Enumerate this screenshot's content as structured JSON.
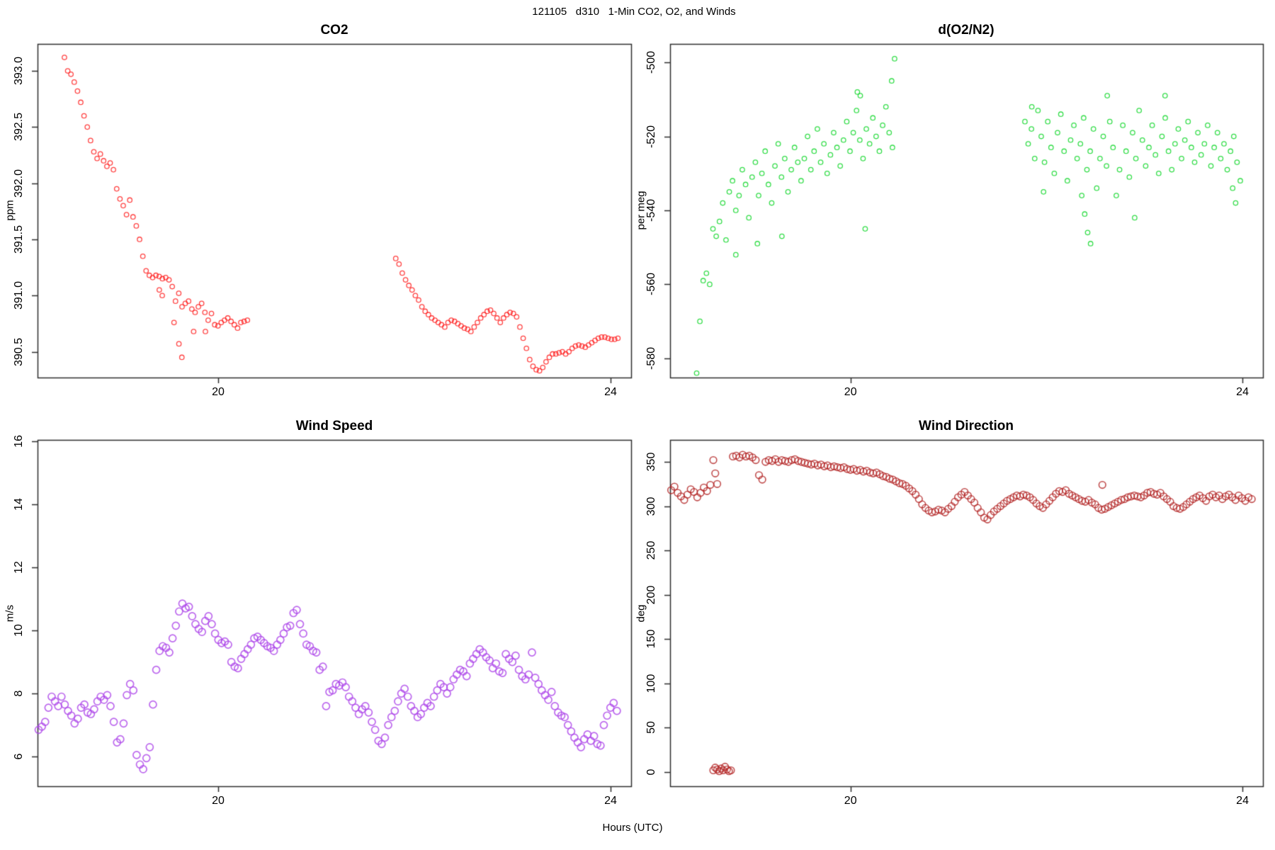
{
  "chart_data": {
    "title": "121105   d310   1-Min CO2, O2, and Winds",
    "xlabel": "Hours (UTC)",
    "type": "scatter",
    "x_axis_hours_range": [
      18.16,
      24.21
    ],
    "panels": [
      {
        "id": "co2",
        "title": "CO2",
        "ylabel": "ppm",
        "color": "#ff1313",
        "x_range": [
          18.159,
          24.209
        ],
        "y_range": [
          390.27,
          393.24
        ],
        "x_ticks": [
          20,
          24
        ],
        "x_tick_labels": [
          "20",
          "24"
        ],
        "y_ticks": {
          "values": [
            390.5,
            391.0,
            391.5,
            392.0,
            392.5,
            393.0
          ],
          "labels": [
            "390.5",
            "391.0",
            "391.5",
            "392.0",
            "392.5",
            "393.0"
          ]
        },
        "segments": [
          {
            "h0": 18.433,
            "dt": 0.0333,
            "values": [
              393.12,
              393.0,
              392.97,
              392.9,
              392.82,
              392.72,
              392.6,
              392.5,
              392.38,
              392.28,
              392.22,
              392.26,
              392.2,
              392.15,
              392.18,
              392.12,
              391.95,
              391.86,
              391.8,
              391.72,
              391.85,
              391.7,
              391.62,
              391.5,
              391.35,
              391.22,
              391.18,
              391.16,
              391.18,
              391.17,
              391.15,
              391.16,
              391.14,
              391.08,
              390.95,
              391.02,
              390.9,
              390.93,
              390.95,
              390.88,
              390.85,
              390.9,
              390.93,
              390.85,
              390.78,
              390.84,
              390.74,
              390.73,
              390.76,
              390.78,
              390.8,
              390.77,
              390.74,
              390.71,
              390.76,
              390.77,
              390.78
            ]
          },
          {
            "h0": 21.81,
            "dt": 0.0333,
            "values": [
              391.33,
              391.28,
              391.2,
              391.14,
              391.09,
              391.05,
              391.0,
              390.96,
              390.9,
              390.86,
              390.83,
              390.8,
              390.78,
              390.76,
              390.74,
              390.72,
              390.76,
              390.78,
              390.77,
              390.75,
              390.73,
              390.71,
              390.7,
              390.68,
              390.72,
              390.76,
              390.8,
              390.83,
              390.86,
              390.87,
              390.84,
              390.8,
              390.76,
              390.8,
              390.83,
              390.85,
              390.84,
              390.81,
              390.72,
              390.62,
              390.53,
              390.43,
              390.37,
              390.34,
              390.33,
              390.36,
              390.41,
              390.45,
              390.48,
              390.48,
              390.49,
              390.5,
              390.48,
              390.5,
              390.53,
              390.55,
              390.56,
              390.55,
              390.54,
              390.56,
              390.58,
              390.6,
              390.62,
              390.63,
              390.63,
              390.62,
              390.61,
              390.61,
              390.62
            ]
          }
        ],
        "points": [
          [
            19.4,
            391.05
          ],
          [
            19.43,
            391.0
          ],
          [
            19.55,
            390.76
          ],
          [
            19.6,
            390.57
          ],
          [
            19.63,
            390.45
          ],
          [
            19.75,
            390.68
          ],
          [
            19.87,
            390.68
          ]
        ]
      },
      {
        "id": "o2n2",
        "title": "d(O2/N2)",
        "ylabel": "per meg",
        "color": "#00d41d",
        "x_range": [
          18.159,
          24.209
        ],
        "y_range": [
          -585.2,
          -495.0
        ],
        "x_ticks": [
          20,
          24
        ],
        "x_tick_labels": [
          "20",
          "24"
        ],
        "y_ticks": {
          "values": [
            -580,
            -560,
            -540,
            -520,
            -500
          ],
          "labels": [
            "-580",
            "-560",
            "-540",
            "-520",
            "-500"
          ]
        },
        "segments": [
          {
            "h0": 18.43,
            "dt": 0.0333,
            "values": [
              -584,
              -570,
              -559,
              -557,
              -560,
              -545,
              -547,
              -543,
              -538,
              -548,
              -535,
              -532,
              -540,
              -536,
              -529,
              -533,
              -542,
              -531,
              -527,
              -536,
              -530,
              -524,
              -533,
              -538,
              -528,
              -522,
              -531,
              -526,
              -535,
              -529,
              -523,
              -527,
              -532,
              -526,
              -520,
              -529,
              -524,
              -518,
              -527,
              -522,
              -530,
              -525,
              -519,
              -523,
              -528,
              -521,
              -516,
              -524,
              -519,
              -513,
              -521,
              -526,
              -518,
              -522,
              -515,
              -520,
              -524,
              -517,
              -512,
              -519,
              -523
            ]
          },
          {
            "h0": 21.78,
            "dt": 0.0333,
            "values": [
              -516,
              -522,
              -518,
              -526,
              -513,
              -520,
              -527,
              -516,
              -523,
              -530,
              -519,
              -514,
              -524,
              -532,
              -521,
              -517,
              -526,
              -522,
              -515,
              -529,
              -524,
              -518,
              -534,
              -526,
              -520,
              -528,
              -516,
              -523,
              -536,
              -529,
              -517,
              -524,
              -531,
              -519,
              -526,
              -513,
              -521,
              -528,
              -523,
              -517,
              -525,
              -530,
              -520,
              -515,
              -524,
              -529,
              -522,
              -518,
              -526,
              -521,
              -516,
              -523,
              -527,
              -519,
              -525,
              -522,
              -517,
              -528,
              -523,
              -519,
              -526,
              -522,
              -529,
              -524,
              -520,
              -527,
              -532
            ]
          }
        ],
        "points": [
          [
            18.83,
            -552
          ],
          [
            19.05,
            -549
          ],
          [
            19.3,
            -547
          ],
          [
            20.07,
            -508
          ],
          [
            20.1,
            -509
          ],
          [
            20.15,
            -545
          ],
          [
            20.42,
            -505
          ],
          [
            20.45,
            -499
          ],
          [
            21.85,
            -512
          ],
          [
            21.97,
            -535
          ],
          [
            22.36,
            -536
          ],
          [
            22.39,
            -541
          ],
          [
            22.42,
            -546
          ],
          [
            22.45,
            -549
          ],
          [
            22.62,
            -509
          ],
          [
            22.9,
            -542
          ],
          [
            23.21,
            -509
          ],
          [
            23.9,
            -534
          ],
          [
            23.93,
            -538
          ]
        ]
      },
      {
        "id": "wind-speed",
        "title": "Wind Speed",
        "ylabel": "m/s",
        "color": "#ab42e8",
        "x_range": [
          18.159,
          24.209
        ],
        "y_range": [
          5.06,
          16.04
        ],
        "x_ticks": [
          20,
          24
        ],
        "x_tick_labels": [
          "20",
          "24"
        ],
        "y_ticks": {
          "values": [
            6,
            8,
            10,
            12,
            14,
            16
          ],
          "labels": [
            "6",
            "8",
            "10",
            "12",
            "14",
            "16"
          ]
        },
        "segments": [
          {
            "h0": 18.17,
            "dt": 0.0333,
            "values": [
              6.85,
              6.95,
              7.1,
              7.55,
              7.9,
              7.75,
              7.6,
              7.9,
              7.65,
              7.45,
              7.3,
              7.05,
              7.2,
              7.55,
              7.65,
              7.4,
              7.35,
              7.5,
              7.75,
              7.9,
              7.8,
              7.95,
              7.6,
              7.1,
              6.45,
              6.55,
              7.05,
              7.95,
              8.3,
              8.1,
              6.05,
              5.75,
              5.6,
              5.95,
              6.3,
              7.65,
              8.75,
              9.35,
              9.5,
              9.45,
              9.3,
              9.75,
              10.15,
              10.6,
              10.85,
              10.7,
              10.75,
              10.45,
              10.2,
              10.05,
              9.95,
              10.3,
              10.45,
              10.2,
              9.9,
              9.7,
              9.6,
              9.65,
              9.55,
              9.0,
              8.85,
              8.8,
              9.1,
              9.25,
              9.4,
              9.55,
              9.75,
              9.8,
              9.7,
              9.6,
              9.5,
              9.45,
              9.35,
              9.55,
              9.7,
              9.9,
              10.1,
              10.15,
              10.55,
              10.65,
              10.2,
              9.9,
              9.55,
              9.5,
              9.35,
              9.3,
              8.75,
              8.85,
              7.6,
              8.05,
              8.1,
              8.3,
              8.25,
              8.35,
              8.2,
              7.9,
              7.75,
              7.55,
              7.35,
              7.5,
              7.6,
              7.4,
              7.1,
              6.85,
              6.5,
              6.4,
              6.6,
              7.0,
              7.25,
              7.45,
              7.75,
              8.0,
              8.15,
              7.9,
              7.6,
              7.45,
              7.25,
              7.35,
              7.55,
              7.7,
              7.6,
              7.9,
              8.1,
              8.3,
              8.2,
              8.0,
              8.2,
              8.45,
              8.6,
              8.75,
              8.7,
              8.55,
              8.95,
              9.1,
              9.25,
              9.4,
              9.3,
              9.15,
              9.05,
              8.8,
              8.95,
              8.7,
              8.65,
              9.25,
              9.1,
              9.0,
              9.2,
              8.75,
              8.55,
              8.45,
              8.6,
              9.3,
              8.5,
              8.3,
              8.1,
              7.95,
              7.8,
              8.05,
              7.6,
              7.4,
              7.3,
              7.25,
              7.0,
              6.8,
              6.6,
              6.45,
              6.3,
              6.55,
              6.7,
              6.5,
              6.65,
              6.4,
              6.35,
              7.0,
              7.3,
              7.55,
              7.7,
              7.45
            ]
          }
        ],
        "points": []
      },
      {
        "id": "wind-direction",
        "title": "Wind Direction",
        "ylabel": "deg",
        "color": "#b22222",
        "x_range": [
          18.159,
          24.209
        ],
        "y_range": [
          -16,
          374.8
        ],
        "x_ticks": [
          20,
          24
        ],
        "x_tick_labels": [
          "20",
          "24"
        ],
        "y_ticks": {
          "values": [
            0,
            50,
            100,
            150,
            200,
            250,
            300,
            350
          ],
          "labels": [
            "0",
            "50",
            "100",
            "150",
            "200",
            "250",
            "300",
            "350"
          ]
        },
        "segments": [
          {
            "h0": 18.17,
            "dt": 0.0333,
            "values": [
              318,
              322,
              315,
              311,
              307,
              313,
              319,
              316,
              310,
              315,
              321,
              317,
              324
            ]
          },
          {
            "h0": 18.8,
            "dt": 0.0333,
            "values": [
              356,
              357,
              355,
              358,
              356,
              357,
              355,
              352,
              335,
              330,
              350,
              352,
              351,
              353,
              350,
              352,
              351,
              350,
              352,
              353,
              351,
              350,
              349,
              348,
              347,
              348,
              346,
              347,
              345,
              346,
              344,
              345,
              344,
              343,
              344,
              342,
              341,
              342,
              340,
              341,
              339,
              340,
              338,
              337,
              338,
              336,
              334,
              333,
              331,
              330,
              328,
              326,
              325,
              323,
              320,
              317,
              313,
              308,
              302,
              298,
              295,
              293,
              294,
              296,
              295,
              293,
              297,
              300,
              305,
              310,
              313,
              316,
              312,
              308,
              304,
              298,
              293,
              287,
              285,
              290,
              294,
              297,
              300,
              303,
              306,
              308,
              310,
              312,
              311,
              313,
              312,
              310,
              307,
              303,
              300,
              298,
              302,
              306,
              310,
              314,
              317,
              316,
              318,
              314,
              312,
              310,
              308,
              306,
              305,
              307,
              304,
              302,
              298,
              296,
              297,
              299,
              301,
              303,
              305,
              307,
              308,
              310,
              311,
              312,
              311,
              310,
              312,
              315,
              316,
              314,
              313,
              315,
              311,
              308,
              305,
              300,
              298,
              297,
              299,
              302,
              305,
              308,
              310,
              312,
              309,
              306,
              311,
              313,
              310,
              312,
              308,
              311,
              313,
              310,
              307,
              312,
              309,
              306,
              310,
              308
            ]
          }
        ],
        "points": [
          [
            18.6,
            352
          ],
          [
            18.62,
            337
          ],
          [
            18.64,
            325
          ],
          [
            18.6,
            2
          ],
          [
            18.62,
            5
          ],
          [
            18.64,
            3
          ],
          [
            18.66,
            1
          ],
          [
            18.68,
            4
          ],
          [
            18.7,
            2
          ],
          [
            18.72,
            6
          ],
          [
            18.74,
            3
          ],
          [
            18.76,
            1
          ],
          [
            18.78,
            2
          ],
          [
            22.57,
            324
          ]
        ]
      }
    ]
  }
}
